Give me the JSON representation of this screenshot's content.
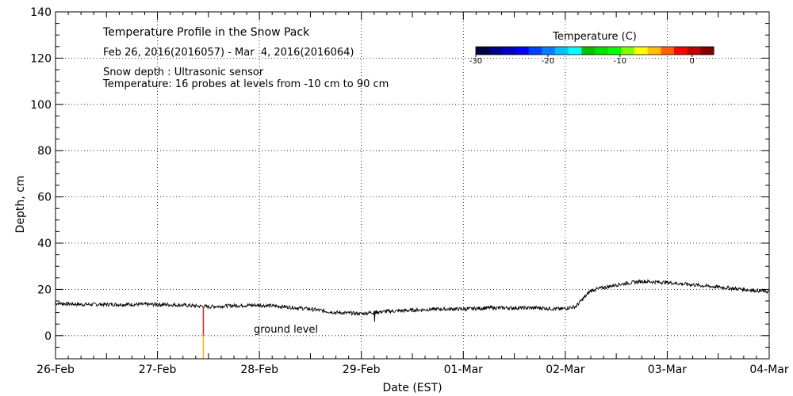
{
  "chart_data": {
    "type": "line",
    "title": "Temperature Profile in the Snow Pack",
    "subtitle": "Feb 26, 2016(2016057) - Mar  4, 2016(2016064)",
    "notes": [
      "Snow depth : Ultrasonic sensor",
      "Temperature: 16 probes at levels from -10 cm to 90 cm"
    ],
    "xlabel": "Date (EST)",
    "ylabel": "Depth, cm",
    "x_ticks": [
      "26-Feb",
      "27-Feb",
      "28-Feb",
      "29-Feb",
      "01-Mar",
      "02-Mar",
      "03-Mar",
      "04-Mar"
    ],
    "xlim": [
      0,
      7
    ],
    "ylim": [
      -10,
      140
    ],
    "y_ticks": [
      0,
      20,
      40,
      60,
      80,
      100,
      120,
      140
    ],
    "grid": "dotted",
    "ground_label": "ground level",
    "colorbar": {
      "title": "Temperature (C)",
      "ticks": [
        "-30",
        "-20",
        "-10",
        "0"
      ],
      "tick_values": [
        -30,
        -20,
        -10,
        0
      ],
      "range": [
        -30,
        3
      ],
      "colors": [
        "#000040",
        "#000080",
        "#0000c0",
        "#0000ff",
        "#0040ff",
        "#0080ff",
        "#00c0ff",
        "#00ffff",
        "#00c000",
        "#00e000",
        "#00ff00",
        "#80ff00",
        "#ffff00",
        "#ffc000",
        "#ff6000",
        "#ff0000",
        "#c00000",
        "#800000"
      ]
    },
    "series": [
      {
        "values_x": [
          0,
          0.25,
          0.5,
          0.75,
          1.0,
          1.25,
          1.5,
          1.75,
          2.0,
          2.25,
          2.5,
          2.75,
          3.0,
          3.1,
          3.25,
          3.5,
          3.75,
          4.0,
          4.25,
          4.5,
          4.75,
          4.95,
          5.1,
          5.25,
          5.5,
          5.75,
          6.0,
          6.25,
          6.5,
          6.75,
          7.0
        ],
        "values_y": [
          14,
          13.5,
          13.5,
          13.5,
          13.5,
          13.2,
          12.5,
          13,
          13.2,
          12.5,
          11.5,
          10,
          9.5,
          10,
          10.5,
          11,
          11.5,
          11.5,
          12,
          12,
          12,
          11.5,
          12.5,
          19.5,
          22,
          23.5,
          23,
          22,
          21,
          20,
          19
        ]
      }
    ],
    "probe_mark": {
      "x": 1.45,
      "segments": [
        {
          "y0": 0,
          "y1": 12,
          "color": "#e02020"
        },
        {
          "y0": -10,
          "y1": 0,
          "color": "#ffb000"
        }
      ]
    }
  }
}
